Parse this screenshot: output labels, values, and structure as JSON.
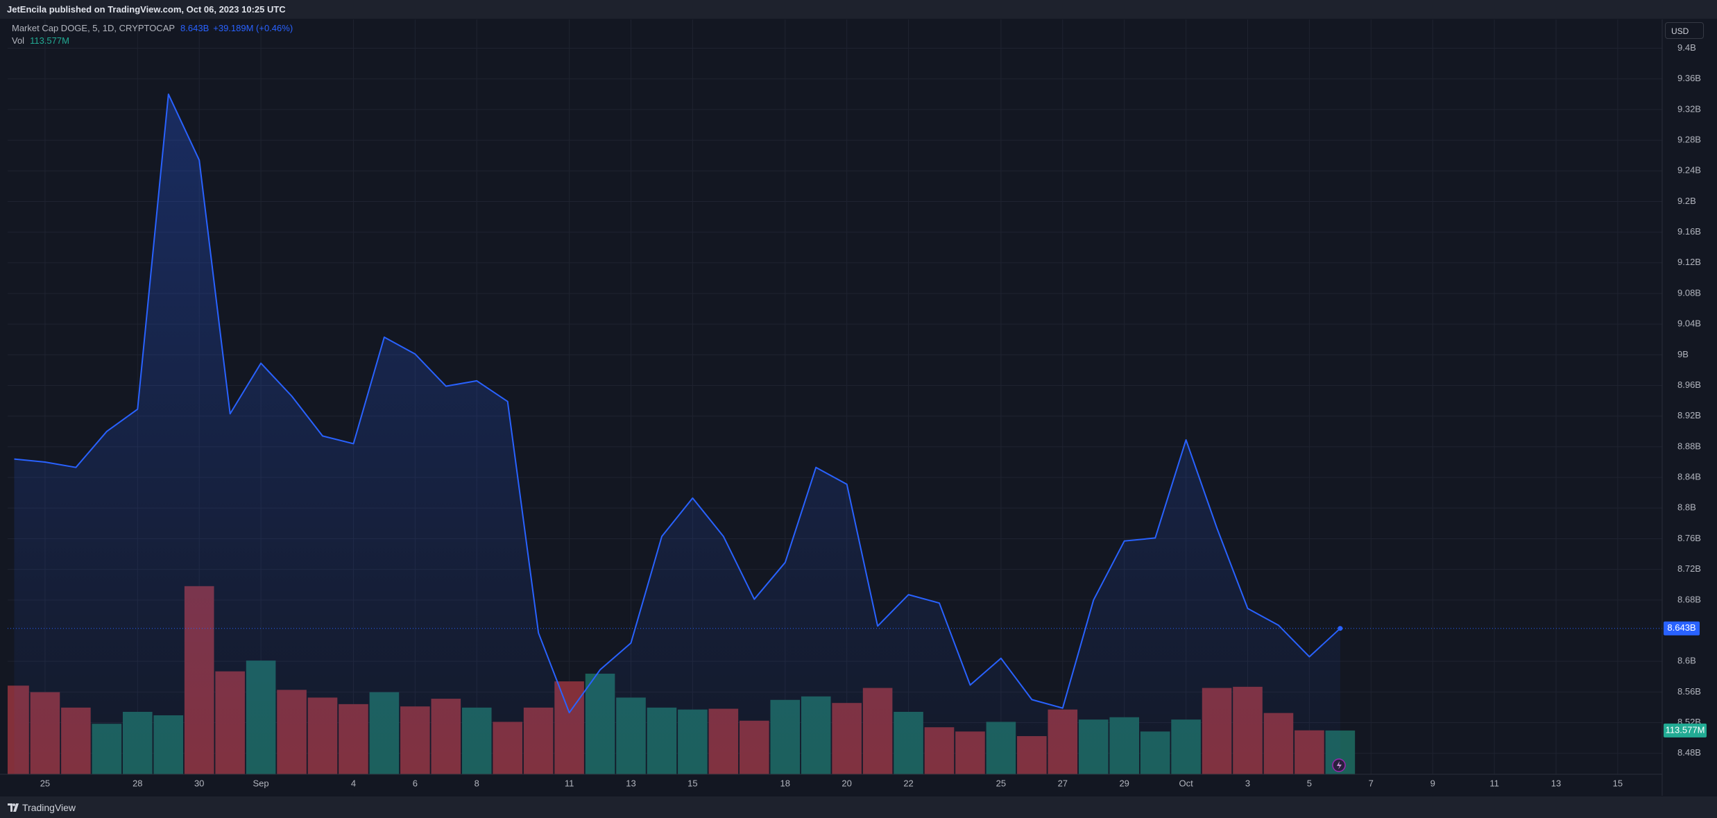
{
  "publisher": "JetEncila published on TradingView.com, Oct 06, 2023 10:25 UTC",
  "brand": "TradingView",
  "chart_data": {
    "type": "area",
    "currency": "USD",
    "change": "+39.189M (+0.46%)",
    "grid": true,
    "ylim": [
      8.4526,
      9.4376
    ],
    "yticks": [
      {
        "value": 9.4,
        "label": "9.4B"
      },
      {
        "value": 9.36,
        "label": "9.36B"
      },
      {
        "value": 9.32,
        "label": "9.32B"
      },
      {
        "value": 9.28,
        "label": "9.28B"
      },
      {
        "value": 9.24,
        "label": "9.24B"
      },
      {
        "value": 9.2,
        "label": "9.2B"
      },
      {
        "value": 9.16,
        "label": "9.16B"
      },
      {
        "value": 9.12,
        "label": "9.12B"
      },
      {
        "value": 9.08,
        "label": "9.08B"
      },
      {
        "value": 9.04,
        "label": "9.04B"
      },
      {
        "value": 9,
        "label": "9B"
      },
      {
        "value": 8.96,
        "label": "8.96B"
      },
      {
        "value": 8.92,
        "label": "8.92B"
      },
      {
        "value": 8.88,
        "label": "8.88B"
      },
      {
        "value": 8.84,
        "label": "8.84B"
      },
      {
        "value": 8.8,
        "label": "8.8B"
      },
      {
        "value": 8.76,
        "label": "8.76B"
      },
      {
        "value": 8.72,
        "label": "8.72B"
      },
      {
        "value": 8.68,
        "label": "8.68B"
      },
      {
        "value": 8.6,
        "label": "8.6B"
      },
      {
        "value": 8.56,
        "label": "8.56B"
      },
      {
        "value": 8.52,
        "label": "8.52B"
      },
      {
        "value": 8.48,
        "label": "8.48B"
      }
    ],
    "y2lim": [
      0,
      1958
    ],
    "categories": [
      null,
      "25",
      null,
      null,
      "28",
      null,
      "30",
      null,
      "Sep",
      null,
      null,
      "4",
      null,
      "6",
      null,
      "8",
      null,
      null,
      "11",
      null,
      "13",
      null,
      "15",
      null,
      null,
      "18",
      null,
      "20",
      null,
      "22",
      null,
      null,
      "25",
      null,
      "27",
      null,
      "29",
      null,
      "Oct",
      null,
      "3",
      null,
      "5",
      null,
      "7",
      null,
      "9",
      null,
      "11",
      null,
      "13",
      null,
      "15"
    ],
    "series": [
      {
        "name": "Market Cap DOGE, 5, 1D, CRYPTOCAP",
        "color": "#2962ff",
        "values": [
          8.864,
          8.86,
          8.853,
          8.9,
          8.929,
          9.34,
          9.254,
          8.923,
          8.989,
          8.946,
          8.894,
          8.884,
          9.023,
          9.001,
          8.959,
          8.966,
          8.939,
          8.637,
          8.533,
          8.589,
          8.624,
          8.763,
          8.813,
          8.763,
          8.681,
          8.729,
          8.853,
          8.831,
          8.646,
          8.687,
          8.676,
          8.569,
          8.604,
          8.55,
          8.539,
          8.68,
          8.757,
          8.761,
          8.889,
          8.774,
          8.669,
          8.647,
          8.606,
          8.643,
          null,
          null,
          null,
          null,
          null,
          null,
          null,
          null,
          null
        ],
        "value_labels": [
          null,
          null,
          null,
          null,
          null,
          null,
          null,
          null,
          null,
          null,
          null,
          null,
          null,
          null,
          null,
          null,
          null,
          null,
          null,
          null,
          null,
          null,
          null,
          null,
          null,
          null,
          null,
          null,
          null,
          null,
          null,
          null,
          null,
          null,
          null,
          null,
          null,
          null,
          null,
          null,
          null,
          null,
          null,
          "8.643B",
          null,
          null,
          null,
          null,
          null,
          null,
          null,
          null,
          null
        ]
      },
      {
        "name": "Vol",
        "type": "bar",
        "axis": "y2",
        "values": [
          230,
          213,
          173,
          131,
          162,
          153,
          488,
          267,
          295,
          219,
          199,
          182,
          213,
          176,
          196,
          173,
          136,
          173,
          241,
          261,
          199,
          173,
          168,
          170,
          139,
          193,
          202,
          185,
          224,
          162,
          122,
          111,
          136,
          99,
          168,
          142,
          148,
          111,
          142,
          224,
          227,
          159,
          114,
          113.577,
          null,
          null,
          null,
          null,
          null,
          null,
          null,
          null,
          null
        ],
        "value_labels": [
          null,
          null,
          null,
          null,
          null,
          null,
          null,
          null,
          null,
          null,
          null,
          null,
          null,
          null,
          null,
          null,
          null,
          null,
          null,
          null,
          null,
          null,
          null,
          null,
          null,
          null,
          null,
          null,
          null,
          null,
          null,
          null,
          null,
          null,
          null,
          null,
          null,
          null,
          null,
          null,
          null,
          null,
          null,
          "113.577M",
          null,
          null,
          null,
          null,
          null,
          null,
          null,
          null,
          null
        ],
        "colors": [
          "#83303a",
          "#83303a",
          "#83303a",
          "#1c6058",
          "#1c6058",
          "#1c6058",
          "#83303a",
          "#83303a",
          "#1c6058",
          "#83303a",
          "#83303a",
          "#83303a",
          "#1c6058",
          "#83303a",
          "#83303a",
          "#1c6058",
          "#83303a",
          "#83303a",
          "#83303a",
          "#1c6058",
          "#1c6058",
          "#1c6058",
          "#1c6058",
          "#83303a",
          "#83303a",
          "#1c6058",
          "#1c6058",
          "#83303a",
          "#83303a",
          "#1c6058",
          "#83303a",
          "#83303a",
          "#1c6058",
          "#83303a",
          "#83303a",
          "#1c6058",
          "#1c6058",
          "#1c6058",
          "#1c6058",
          "#83303a",
          "#83303a",
          "#83303a",
          "#83303a",
          "#1c6058",
          null,
          null,
          null,
          null,
          null,
          null,
          null,
          null,
          null
        ]
      }
    ]
  }
}
